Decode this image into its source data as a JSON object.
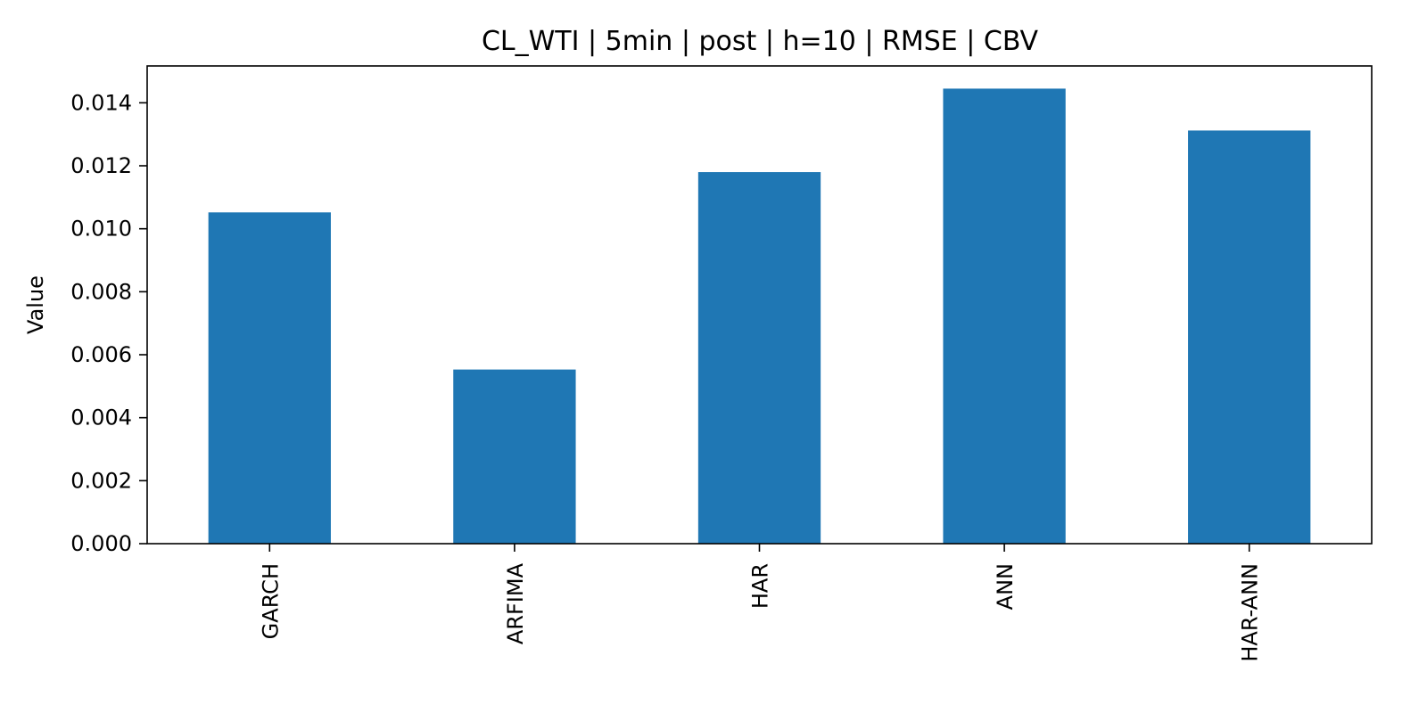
{
  "chart_data": {
    "type": "bar",
    "title": "CL_WTI | 5min | post | h=10 | RMSE | CBV",
    "xlabel": "",
    "ylabel": "Value",
    "categories": [
      "GARCH",
      "ARFIMA",
      "HAR",
      "ANN",
      "HAR-ANN"
    ],
    "values": [
      0.01052,
      0.00553,
      0.0118,
      0.01445,
      0.01312
    ],
    "ylim": [
      0,
      0.01517
    ],
    "yticks": [
      "0.000",
      "0.002",
      "0.004",
      "0.006",
      "0.008",
      "0.010",
      "0.012",
      "0.014"
    ],
    "ytick_values": [
      0,
      0.002,
      0.004,
      0.006,
      0.008,
      0.01,
      0.012,
      0.014
    ],
    "bar_color": "#1f77b4",
    "grid": false,
    "legend": "none"
  }
}
